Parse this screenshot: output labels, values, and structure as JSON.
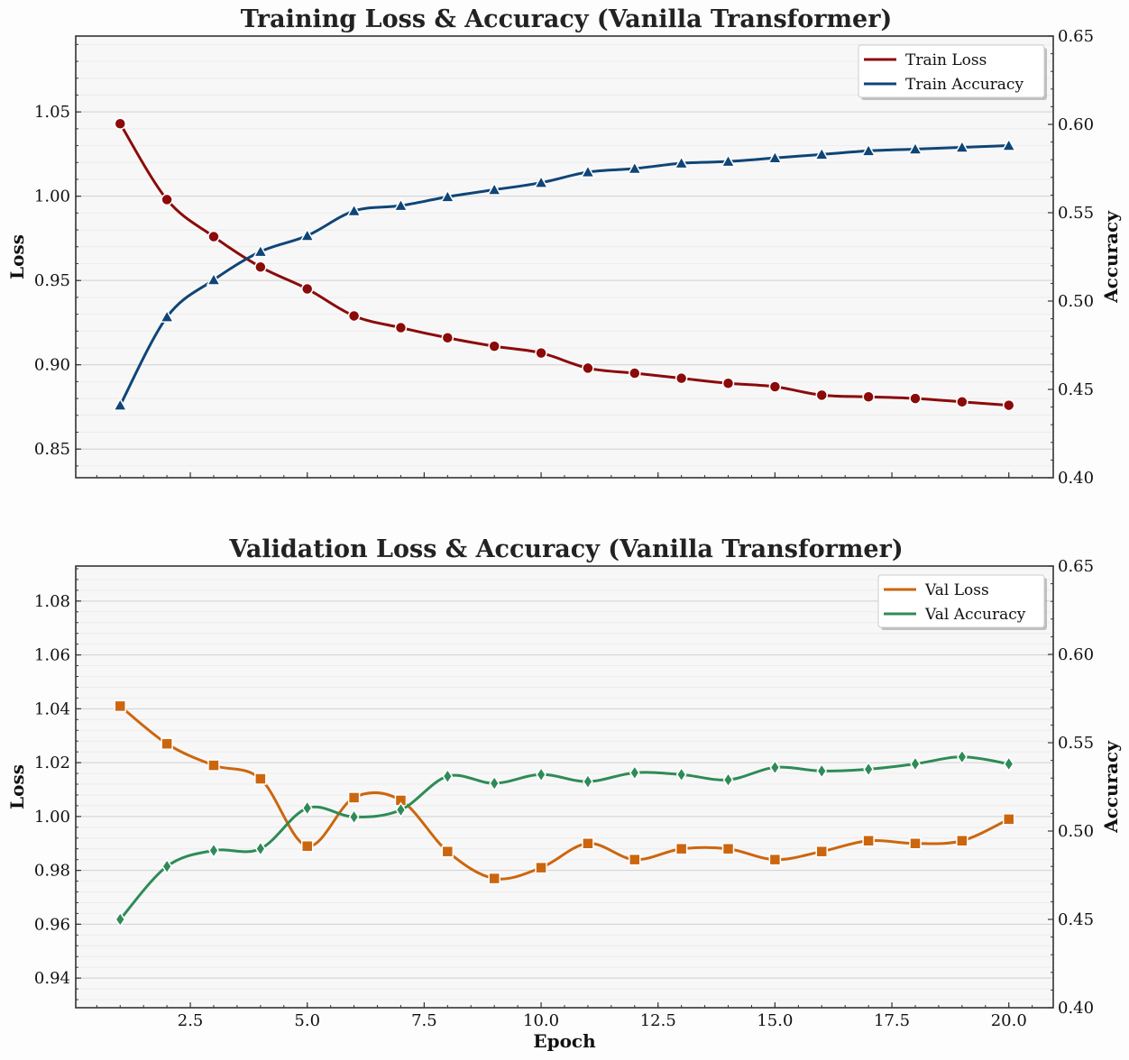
{
  "chart_data": [
    {
      "type": "line",
      "title": "Training Loss & Accuracy (Vanilla Transformer)",
      "xlabel": "",
      "ylabel": "Loss",
      "ylabel_right": "Accuracy",
      "xlim": [
        0.05,
        20.95
      ],
      "ylim": [
        0.833,
        1.095
      ],
      "ylim_right": [
        0.4,
        0.65
      ],
      "x_ticks": [
        2.5,
        5.0,
        7.5,
        10.0,
        12.5,
        15.0,
        17.5,
        20.0
      ],
      "x_tick_labels": [
        "",
        "",
        "",
        "",
        "",
        "",
        "",
        ""
      ],
      "y_ticks": [
        0.85,
        0.9,
        0.95,
        1.0,
        1.05
      ],
      "y_tick_labels": [
        "0.85",
        "0.90",
        "0.95",
        "1.00",
        "1.05"
      ],
      "y_right_ticks": [
        0.4,
        0.45,
        0.5,
        0.55,
        0.6,
        0.65
      ],
      "y_right_tick_labels": [
        "0.40",
        "0.45",
        "0.50",
        "0.55",
        "0.60",
        "0.65"
      ],
      "grid": true,
      "legend_position": "top-right",
      "x": [
        1,
        2,
        3,
        4,
        5,
        6,
        7,
        8,
        9,
        10,
        11,
        12,
        13,
        14,
        15,
        16,
        17,
        18,
        19,
        20
      ],
      "series": [
        {
          "name": "Train Loss",
          "axis": "left",
          "color": "#8b0a0a",
          "marker": "circle",
          "values": [
            1.043,
            0.998,
            0.976,
            0.958,
            0.945,
            0.929,
            0.922,
            0.916,
            0.911,
            0.907,
            0.898,
            0.895,
            0.892,
            0.889,
            0.887,
            0.882,
            0.881,
            0.88,
            0.878,
            0.876
          ]
        },
        {
          "name": "Train Accuracy",
          "axis": "right",
          "color": "#0f4577",
          "marker": "triangle",
          "values": [
            0.441,
            0.491,
            0.512,
            0.528,
            0.537,
            0.551,
            0.554,
            0.559,
            0.563,
            0.567,
            0.573,
            0.575,
            0.578,
            0.579,
            0.581,
            0.583,
            0.585,
            0.586,
            0.587,
            0.588
          ]
        }
      ]
    },
    {
      "type": "line",
      "title": "Validation Loss & Accuracy (Vanilla Transformer)",
      "xlabel": "Epoch",
      "ylabel": "Loss",
      "ylabel_right": "Accuracy",
      "xlim": [
        0.05,
        20.95
      ],
      "ylim": [
        0.929,
        1.093
      ],
      "ylim_right": [
        0.4,
        0.65
      ],
      "x_ticks": [
        2.5,
        5.0,
        7.5,
        10.0,
        12.5,
        15.0,
        17.5,
        20.0
      ],
      "x_tick_labels": [
        "2.5",
        "5.0",
        "7.5",
        "10.0",
        "12.5",
        "15.0",
        "17.5",
        "20.0"
      ],
      "y_ticks": [
        0.94,
        0.96,
        0.98,
        1.0,
        1.02,
        1.04,
        1.06,
        1.08
      ],
      "y_tick_labels": [
        "0.94",
        "0.96",
        "0.98",
        "1.00",
        "1.02",
        "1.04",
        "1.06",
        "1.08"
      ],
      "y_right_ticks": [
        0.4,
        0.45,
        0.5,
        0.55,
        0.6,
        0.65
      ],
      "y_right_tick_labels": [
        "0.40",
        "0.45",
        "0.50",
        "0.55",
        "0.60",
        "0.65"
      ],
      "grid": true,
      "legend_position": "top-right",
      "x": [
        1,
        2,
        3,
        4,
        5,
        6,
        7,
        8,
        9,
        10,
        11,
        12,
        13,
        14,
        15,
        16,
        17,
        18,
        19,
        20
      ],
      "series": [
        {
          "name": "Val Loss",
          "axis": "left",
          "color": "#cc660e",
          "marker": "square",
          "values": [
            1.041,
            1.027,
            1.019,
            1.014,
            0.989,
            1.007,
            1.006,
            0.987,
            0.977,
            0.981,
            0.99,
            0.984,
            0.988,
            0.988,
            0.984,
            0.987,
            0.991,
            0.99,
            0.991,
            0.999
          ]
        },
        {
          "name": "Val Accuracy",
          "axis": "right",
          "color": "#2e8b57",
          "marker": "diamond",
          "values": [
            0.45,
            0.48,
            0.489,
            0.49,
            0.513,
            0.508,
            0.512,
            0.531,
            0.527,
            0.532,
            0.528,
            0.533,
            0.532,
            0.529,
            0.536,
            0.534,
            0.535,
            0.538,
            0.542,
            0.538
          ]
        }
      ]
    }
  ]
}
